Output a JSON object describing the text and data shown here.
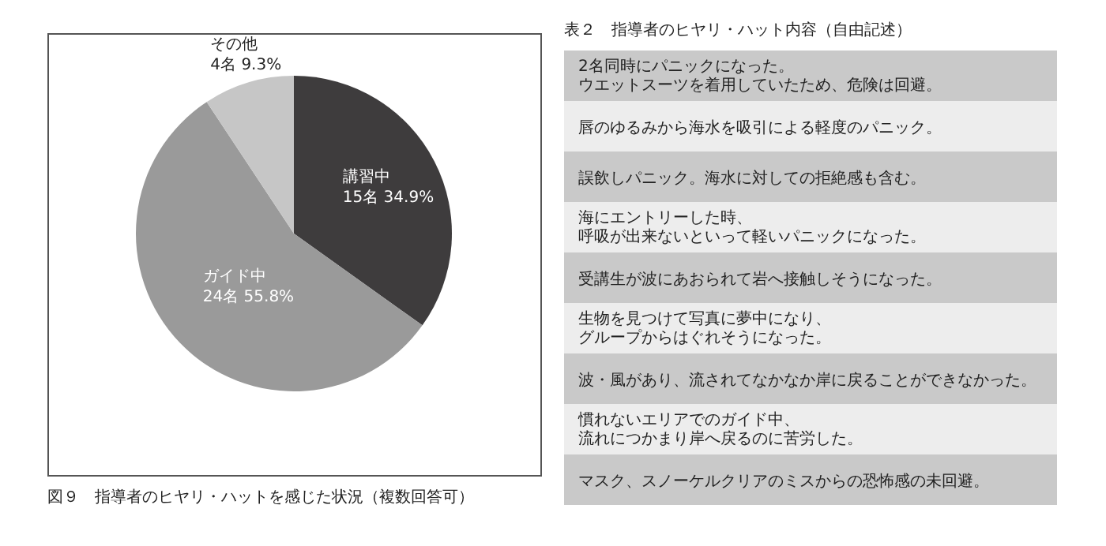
{
  "chart_data": [
    {
      "type": "pie",
      "title": "図９　指導者のヒヤリ・ハットを感じた状況（複数回答可）",
      "categories": [
        "講習中",
        "ガイド中",
        "その他"
      ],
      "values": [
        15,
        24,
        4
      ],
      "value_labels": [
        "15名 34.9%",
        "24名 55.8%",
        "4名 9.3%"
      ],
      "colors": [
        "#3e3c3d",
        "#9a9a9a",
        "#c6c6c6"
      ]
    },
    {
      "type": "other",
      "title": "表２　指導者のヒヤリ・ハット内容（自由記述）",
      "annotations": [
        "2名同時にパニックになった。ウエットスーツを着用していたため、危険は回避。",
        "唇のゆるみから海水を吸引による軽度のパニック。",
        "誤飲しパニック。海水に対しての拒絶感も含む。",
        "海にエントリーした時、呼吸が出来ないといって軽いパニックになった。",
        "受講生が波にあおられて岩へ接触しそうになった。",
        "生物を見つけて写真に夢中になり、グループからはぐれそうになった。",
        "波・風があり、流されてなかなか岸に戻ることができなかった。",
        "慣れないエリアでのガイド中、流れにつかまり岸へ戻るのに苦労した。",
        "マスク、スノーケルクリアのミスからの恐怖感の未回避。"
      ]
    }
  ]
}
